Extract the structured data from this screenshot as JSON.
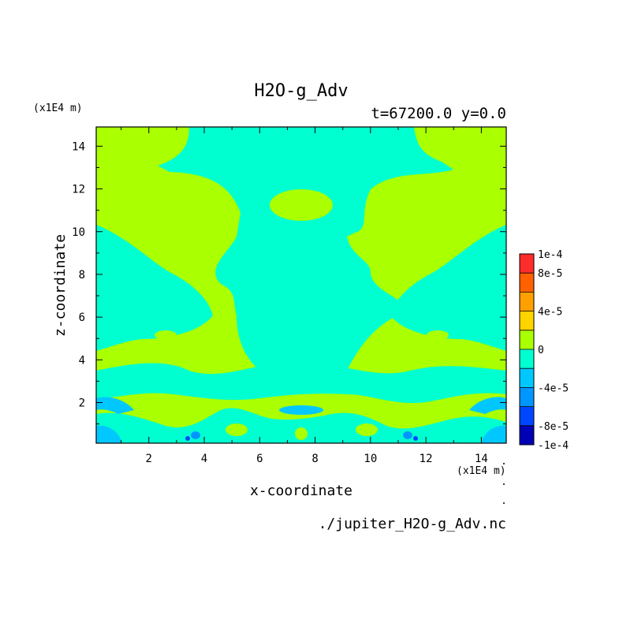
{
  "chart_data": {
    "type": "heatmap",
    "title": "H2O-g_Adv",
    "subtitle": "t=67200.0 y=0.0",
    "xlabel": "x-coordinate",
    "ylabel": "z-coordinate",
    "x_unit_label": "(x1E4 m)",
    "y_unit_label": "(x1E4 m)",
    "xlim": [
      0.1,
      14.9
    ],
    "ylim": [
      0.1,
      14.9
    ],
    "x_ticks": [
      2,
      4,
      6,
      8,
      10,
      12,
      14
    ],
    "y_ticks": [
      2,
      4,
      6,
      8,
      10,
      12,
      14
    ],
    "source_file": "./jupiter_H2O-g_Adv.nc",
    "colorbar": {
      "levels": [
        -0.0001,
        -8e-05,
        -6e-05,
        -4e-05,
        -2e-05,
        0,
        2e-05,
        4e-05,
        6e-05,
        8e-05,
        0.0001
      ],
      "colors": [
        "#0000b4",
        "#0046ff",
        "#0096ff",
        "#00c8ff",
        "#00ffd0",
        "#aaff00",
        "#ffd400",
        "#ffa000",
        "#ff6000",
        "#ff2c2c"
      ],
      "labels": [
        {
          "value": 0.0001,
          "text": "1e-4"
        },
        {
          "value": 8e-05,
          "text": "8e-5"
        },
        {
          "value": 4e-05,
          "text": "4e-5"
        },
        {
          "value": 0,
          "text": "0"
        },
        {
          "value": -4e-05,
          "text": "-4e-5"
        },
        {
          "value": -8e-05,
          "text": "-8e-5"
        },
        {
          "value": -0.0001,
          "text": "-1e-4"
        }
      ]
    },
    "field_colors": {
      "positive_small": "#aaff00",
      "negative_small": "#00ffd0",
      "negative_medium": "#00c8ff",
      "negative_large": "#0096ff",
      "negative_extreme": "#0046ff"
    }
  }
}
